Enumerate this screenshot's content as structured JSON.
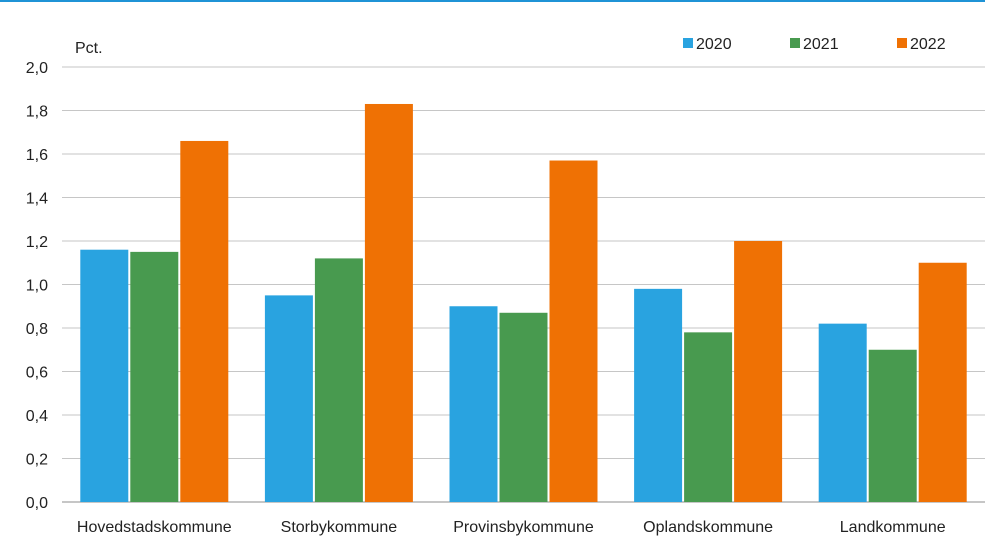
{
  "chart_data": {
    "type": "bar",
    "ylabel": "Pct.",
    "ylim": [
      0,
      2.0
    ],
    "yticks": [
      "0,0",
      "0,2",
      "0,4",
      "0,6",
      "0,8",
      "1,0",
      "1,2",
      "1,4",
      "1,6",
      "1,8",
      "2,0"
    ],
    "grid": true,
    "legend_position": "top-right",
    "categories": [
      "Hovedstadskommune",
      "Storbykommune",
      "Provinsbykommune",
      "Oplandskommune",
      "Landkommune"
    ],
    "series": [
      {
        "name": "2020",
        "color": "#29a3e0",
        "values": [
          1.16,
          0.95,
          0.9,
          0.98,
          0.82
        ]
      },
      {
        "name": "2021",
        "color": "#489a4f",
        "values": [
          1.15,
          1.12,
          0.87,
          0.78,
          0.7
        ]
      },
      {
        "name": "2022",
        "color": "#ef7104",
        "values": [
          1.66,
          1.83,
          1.57,
          1.2,
          1.1
        ]
      }
    ]
  }
}
